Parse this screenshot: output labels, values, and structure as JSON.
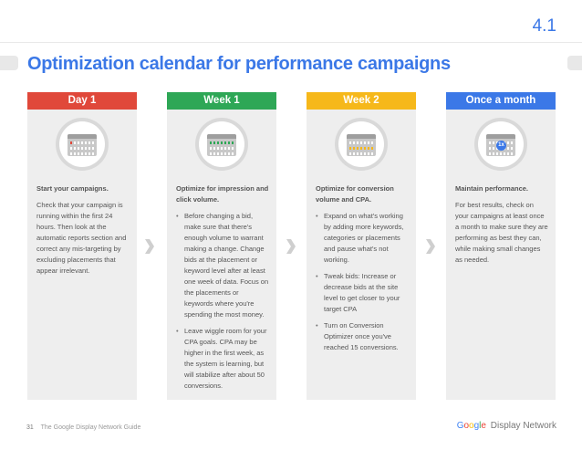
{
  "page_number": "4.1",
  "title": "Optimization calendar for performance campaigns",
  "colors": {
    "red": "#e0483a",
    "green": "#2ea756",
    "yellow": "#f6b81a",
    "blue": "#3b78e7"
  },
  "columns": [
    {
      "header": "Day 1",
      "icon": "calendar-single-day-icon",
      "lead": "Start your campaigns.",
      "paragraphs": [
        "Check that your campaign is running within the first 24 hours. Then look at the automatic reports section and correct any mis-targeting by excluding placements that appear irrelevant."
      ],
      "bullets": []
    },
    {
      "header": "Week 1",
      "icon": "calendar-week-icon",
      "lead": "Optimize for impression and click volume.",
      "paragraphs": [],
      "bullets": [
        "Before changing a bid, make sure that there's enough volume to warrant making a change. Change bids at the placement or keyword level after at least one week of data. Focus on the placements or keywords where you're spending the most money.",
        "Leave wiggle room for your CPA goals. CPA may be higher in the first week, as the system is learning, but will stabilize after about 50 conversions."
      ]
    },
    {
      "header": "Week 2",
      "icon": "calendar-two-weeks-icon",
      "lead": "Optimize for conversion volume and CPA.",
      "paragraphs": [],
      "bullets": [
        "Expand on what's working by adding more keywords, categories or placements and pause what's not working.",
        "Tweak bids: Increase or decrease bids at the site level to get closer to your target CPA",
        "Turn on Conversion Optimizer once you've reached 15 conversions."
      ]
    },
    {
      "header": "Once a month",
      "icon": "calendar-monthly-icon",
      "badge": "1x",
      "lead": "Maintain performance.",
      "paragraphs": [
        "For best results, check on your campaigns at least once a month to make sure they are performing as best they can, while making small changes as needed."
      ],
      "bullets": []
    }
  ],
  "footer": {
    "page": "31",
    "guide": "The Google Display Network Guide",
    "brand_letters": [
      "G",
      "o",
      "o",
      "g",
      "l",
      "e"
    ],
    "brand_suffix": "Display Network"
  }
}
